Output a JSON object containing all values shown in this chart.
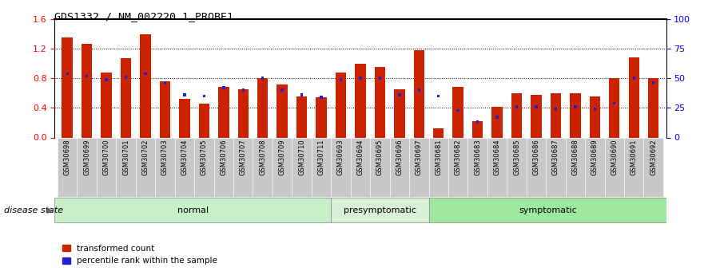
{
  "title": "GDS1332 / NM_002220.1_PROBE1",
  "samples": [
    "GSM30698",
    "GSM30699",
    "GSM30700",
    "GSM30701",
    "GSM30702",
    "GSM30703",
    "GSM30704",
    "GSM30705",
    "GSM30706",
    "GSM30707",
    "GSM30708",
    "GSM30709",
    "GSM30710",
    "GSM30711",
    "GSM30693",
    "GSM30694",
    "GSM30695",
    "GSM30696",
    "GSM30697",
    "GSM30681",
    "GSM30682",
    "GSM30683",
    "GSM30684",
    "GSM30685",
    "GSM30686",
    "GSM30687",
    "GSM30688",
    "GSM30689",
    "GSM30690",
    "GSM30691",
    "GSM30692"
  ],
  "red_values": [
    1.35,
    1.27,
    0.88,
    1.07,
    1.4,
    0.76,
    0.52,
    0.46,
    0.68,
    0.65,
    0.8,
    0.72,
    0.56,
    0.55,
    0.88,
    1.0,
    0.95,
    0.65,
    1.18,
    0.12,
    0.68,
    0.22,
    0.42,
    0.6,
    0.58,
    0.6,
    0.6,
    0.56,
    0.8,
    1.08,
    0.8
  ],
  "blue_pct": [
    54,
    52,
    49,
    51,
    54,
    46,
    36,
    35,
    42,
    40,
    50,
    40,
    36,
    34,
    49,
    50,
    50,
    36,
    40,
    35,
    23,
    13,
    17,
    26,
    26,
    24,
    26,
    24,
    29,
    50,
    46
  ],
  "group_colors": {
    "normal": "#c8f0c8",
    "presymptomatic": "#d8f0d8",
    "symptomatic": "#a0e8a0"
  },
  "group_ranges": [
    {
      "name": "normal",
      "start": 0,
      "end": 13
    },
    {
      "name": "presymptomatic",
      "start": 14,
      "end": 18
    },
    {
      "name": "symptomatic",
      "start": 19,
      "end": 30
    }
  ],
  "ylim_left": [
    0,
    1.6
  ],
  "ylim_right": [
    0,
    100
  ],
  "yticks_left": [
    0.0,
    0.4,
    0.8,
    1.2,
    1.6
  ],
  "yticks_right": [
    0,
    25,
    50,
    75,
    100
  ],
  "bar_color": "#cc2200",
  "blue_color": "#2222cc",
  "legend_red": "transformed count",
  "legend_blue": "percentile rank within the sample",
  "disease_state_label": "disease state"
}
